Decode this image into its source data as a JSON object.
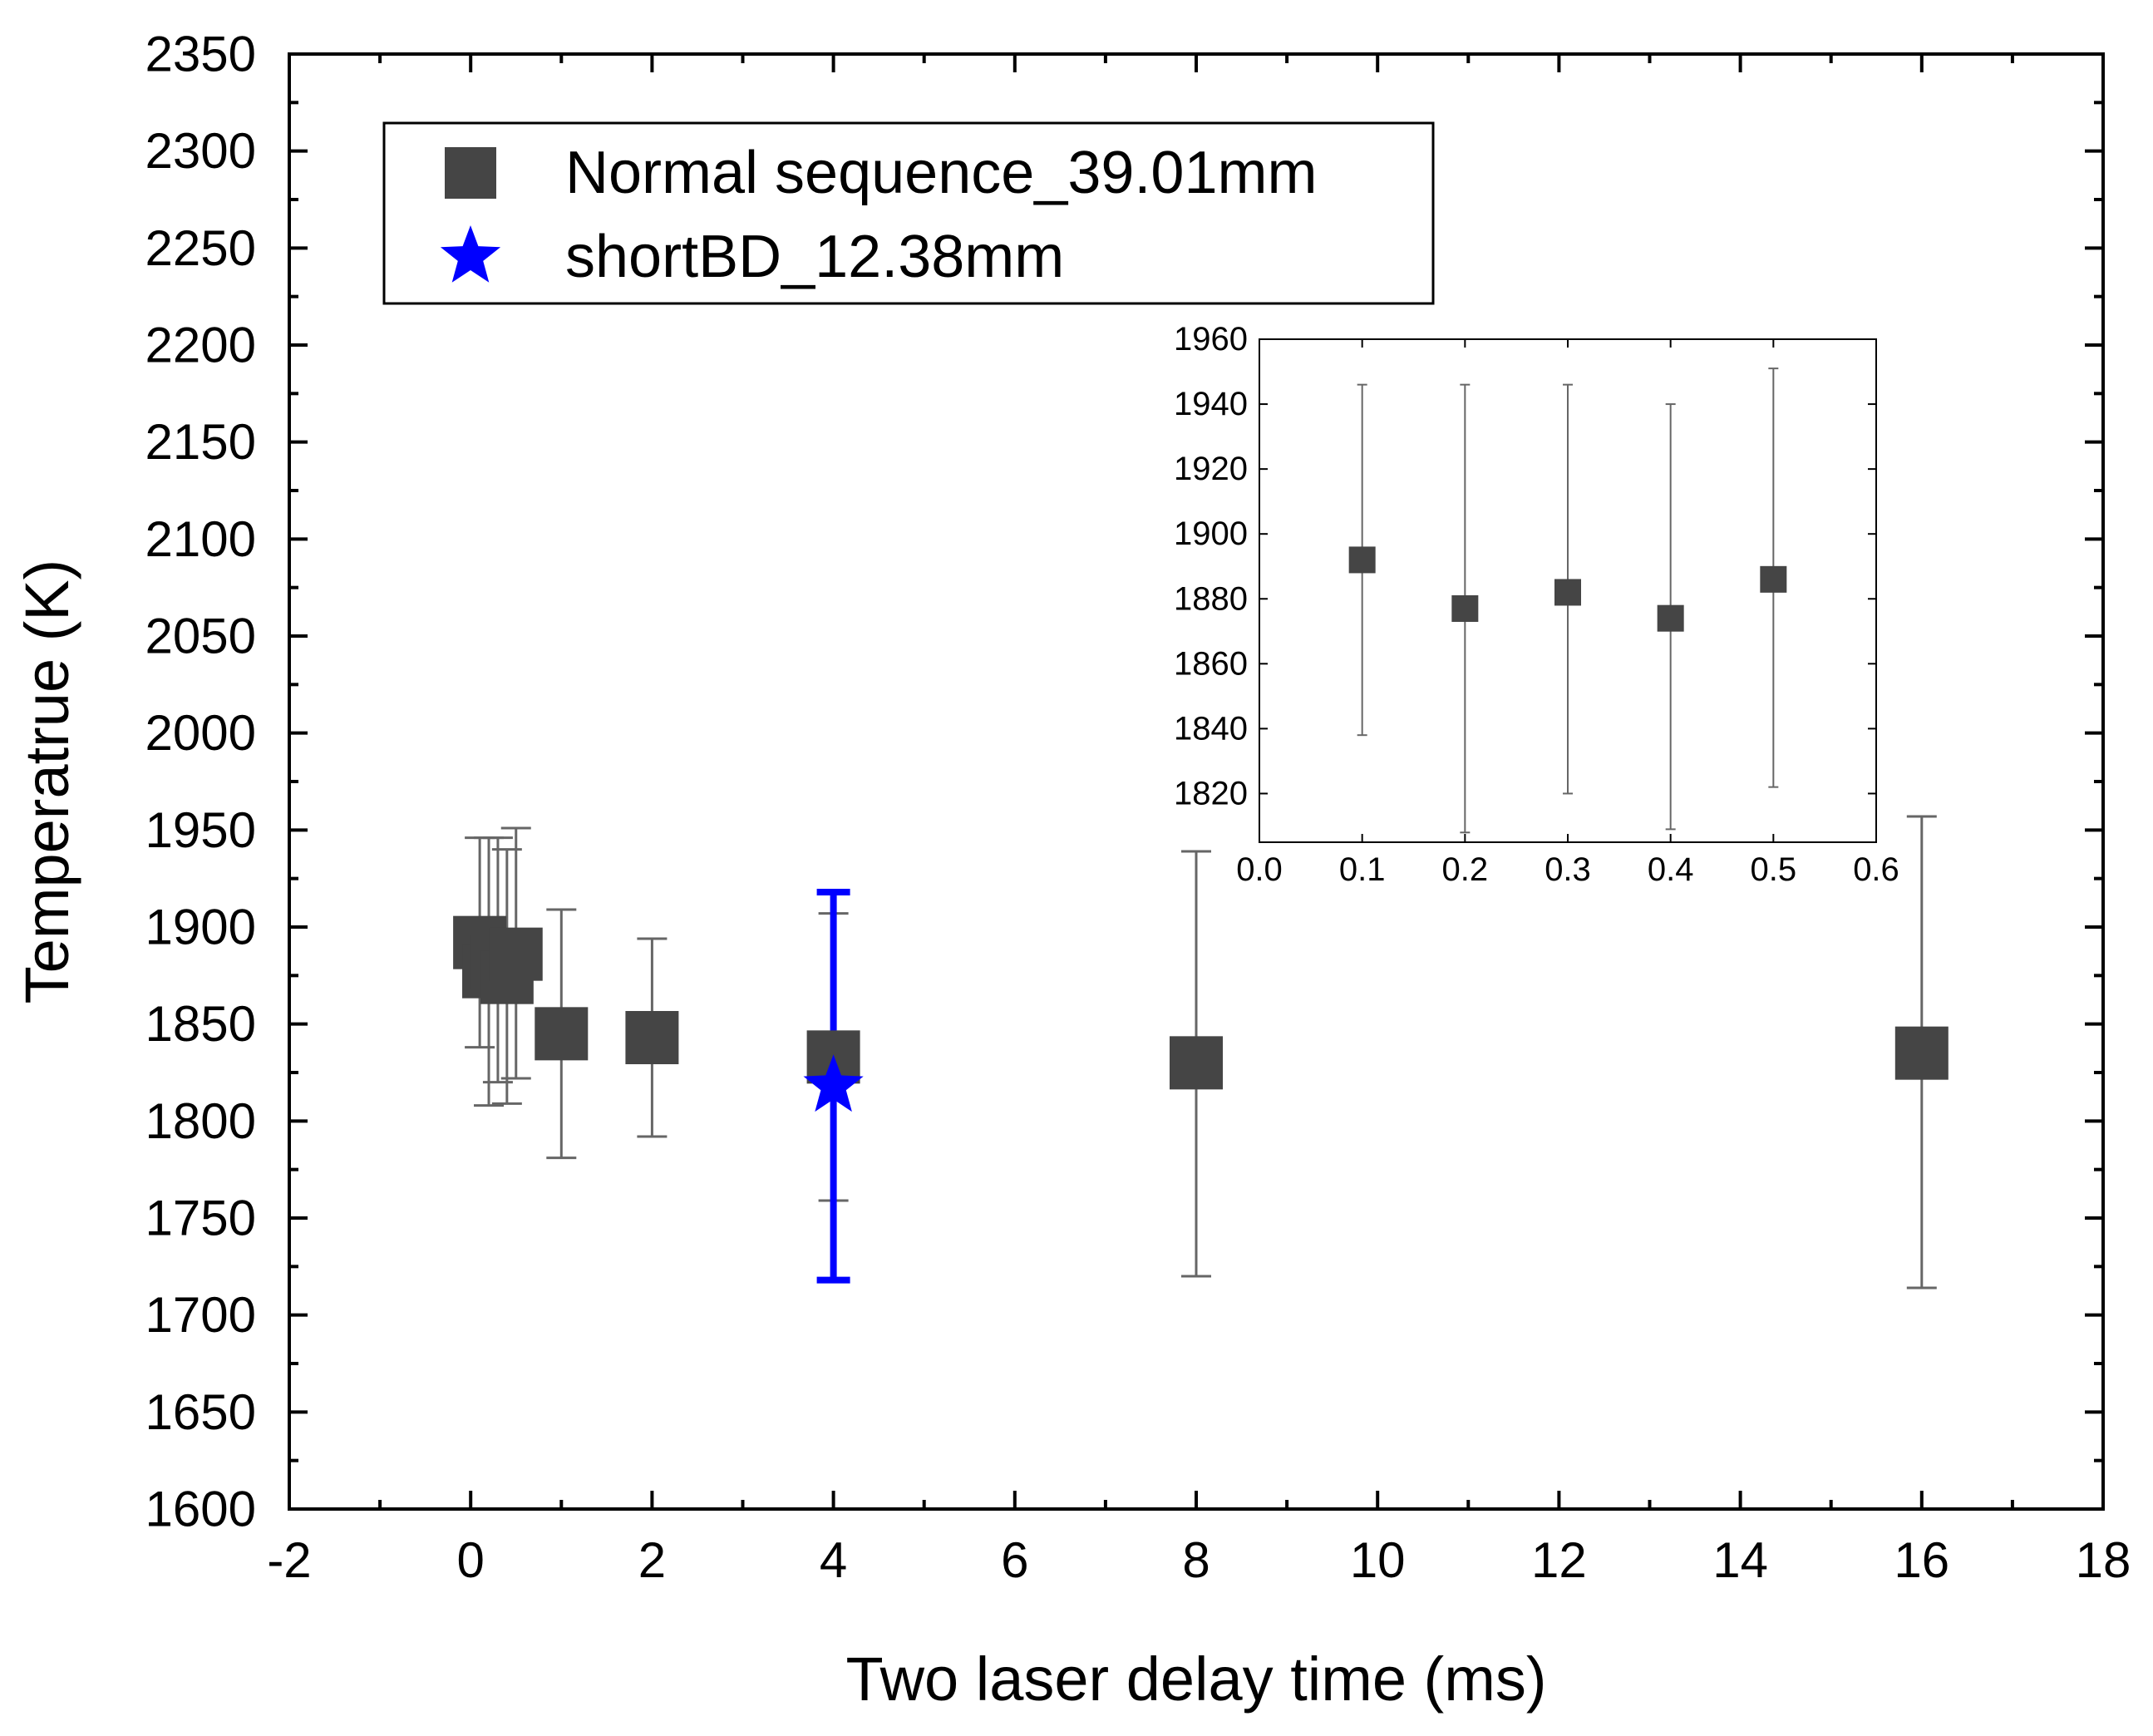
{
  "chart_data": [
    {
      "type": "scatter",
      "title": "",
      "xlabel": "Two laser delay time (ms)",
      "ylabel": "Temperatrue (K)",
      "xlim": [
        -2,
        18
      ],
      "ylim": [
        1600,
        2350
      ],
      "x_ticks": [
        -2,
        0,
        2,
        4,
        6,
        8,
        10,
        12,
        14,
        16,
        18
      ],
      "x_tick_labels": [
        "-2",
        "0",
        "2",
        "4",
        "6",
        "8",
        "10",
        "12",
        "14",
        "16",
        "18"
      ],
      "y_ticks": [
        1600,
        1650,
        1700,
        1750,
        1800,
        1850,
        1900,
        1950,
        2000,
        2050,
        2100,
        2150,
        2200,
        2250,
        2300,
        2350
      ],
      "y_tick_labels": [
        "1600",
        "1650",
        "1700",
        "1750",
        "1800",
        "1850",
        "1900",
        "1950",
        "2000",
        "2050",
        "2100",
        "2150",
        "2200",
        "2250",
        "2300",
        "2350"
      ],
      "legend_position": "top-left",
      "series": [
        {
          "name": "Normal sequence_39.01mm",
          "marker": "square",
          "color": "#454545",
          "errorbar_color": "#666666",
          "points": [
            {
              "x": 0.1,
              "y": 1892,
              "yerr_low": 1838,
              "yerr_high": 1946
            },
            {
              "x": 0.2,
              "y": 1877,
              "yerr_low": 1808,
              "yerr_high": 1946
            },
            {
              "x": 0.3,
              "y": 1882,
              "yerr_low": 1820,
              "yerr_high": 1946
            },
            {
              "x": 0.4,
              "y": 1874,
              "yerr_low": 1809,
              "yerr_high": 1940
            },
            {
              "x": 0.5,
              "y": 1886,
              "yerr_low": 1822,
              "yerr_high": 1951
            },
            {
              "x": 1,
              "y": 1845,
              "yerr_low": 1781,
              "yerr_high": 1909
            },
            {
              "x": 2,
              "y": 1843,
              "yerr_low": 1792,
              "yerr_high": 1894
            },
            {
              "x": 4,
              "y": 1833,
              "yerr_low": 1759,
              "yerr_high": 1907
            },
            {
              "x": 8,
              "y": 1830,
              "yerr_low": 1720,
              "yerr_high": 1939
            },
            {
              "x": 16,
              "y": 1835,
              "yerr_low": 1714,
              "yerr_high": 1957
            }
          ]
        },
        {
          "name": "shortBD_12.38mm",
          "marker": "star",
          "color": "#0000ff",
          "errorbar_color": "#0000ff",
          "points": [
            {
              "x": 4,
              "y": 1818,
              "yerr_low": 1718,
              "yerr_high": 1918
            }
          ]
        }
      ]
    },
    {
      "type": "scatter",
      "title": "inset",
      "xlabel": "",
      "ylabel": "",
      "xlim": [
        0.0,
        0.6
      ],
      "ylim": [
        1805,
        1960
      ],
      "x_ticks": [
        0.0,
        0.1,
        0.2,
        0.3,
        0.4,
        0.5,
        0.6
      ],
      "x_tick_labels": [
        "0.0",
        "0.1",
        "0.2",
        "0.3",
        "0.4",
        "0.5",
        "0.6"
      ],
      "y_ticks": [
        1820,
        1840,
        1860,
        1880,
        1900,
        1920,
        1940,
        1960
      ],
      "y_tick_labels": [
        "1820",
        "1840",
        "1860",
        "1880",
        "1900",
        "1920",
        "1940",
        "1960"
      ],
      "series": [
        {
          "name": "Normal sequence_39.01mm",
          "marker": "square",
          "color": "#454545",
          "errorbar_color": "#666666",
          "points": [
            {
              "x": 0.1,
              "y": 1892,
              "yerr_low": 1838,
              "yerr_high": 1946
            },
            {
              "x": 0.2,
              "y": 1877,
              "yerr_low": 1808,
              "yerr_high": 1946
            },
            {
              "x": 0.3,
              "y": 1882,
              "yerr_low": 1820,
              "yerr_high": 1946
            },
            {
              "x": 0.4,
              "y": 1874,
              "yerr_low": 1809,
              "yerr_high": 1940
            },
            {
              "x": 0.5,
              "y": 1886,
              "yerr_low": 1822,
              "yerr_high": 1951
            }
          ]
        }
      ]
    }
  ]
}
